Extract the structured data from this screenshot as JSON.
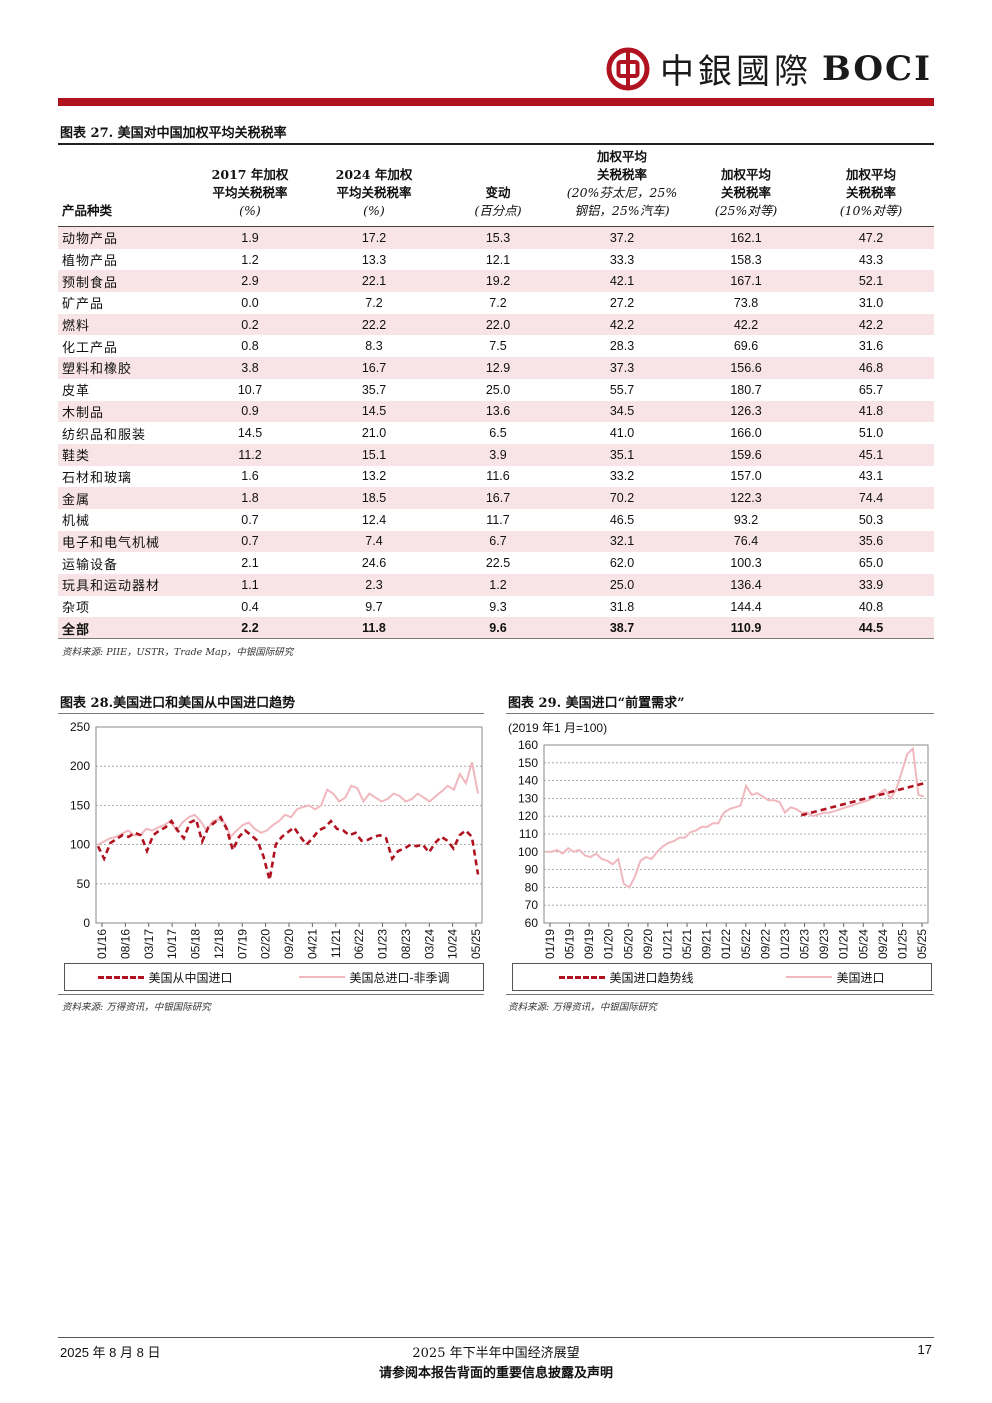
{
  "header": {
    "logo_cn": "中銀國際",
    "logo_en": "BOCI",
    "brand_color": "#b1121f"
  },
  "table27": {
    "title": "图表 27. 美国对中国加权平均关税税率",
    "col0": "产品种类",
    "col1_l1": "2017 年加权",
    "col1_l2": "平均关税税率",
    "col1_unit": "(%)",
    "col2_l1": "2024 年加权",
    "col2_l2": "平均关税税率",
    "col2_unit": "(%)",
    "col3_l1": "变动",
    "col3_unit": "(百分点)",
    "col4_l1": "加权平均",
    "col4_l2": "关税税率",
    "col4_l3": "(20%芬太尼，25%",
    "col4_l4": "钢铝，25%汽车)",
    "col5_l1": "加权平均",
    "col5_l2": "关税税率",
    "col5_unit": "(25%对等)",
    "col6_l1": "加权平均",
    "col6_l2": "关税税率",
    "col6_unit": "(10%对等)",
    "rows": [
      [
        "动物产品",
        "1.9",
        "17.2",
        "15.3",
        "37.2",
        "162.1",
        "47.2"
      ],
      [
        "植物产品",
        "1.2",
        "13.3",
        "12.1",
        "33.3",
        "158.3",
        "43.3"
      ],
      [
        "预制食品",
        "2.9",
        "22.1",
        "19.2",
        "42.1",
        "167.1",
        "52.1"
      ],
      [
        "矿产品",
        "0.0",
        "7.2",
        "7.2",
        "27.2",
        "73.8",
        "31.0"
      ],
      [
        "燃料",
        "0.2",
        "22.2",
        "22.0",
        "42.2",
        "42.2",
        "42.2"
      ],
      [
        "化工产品",
        "0.8",
        "8.3",
        "7.5",
        "28.3",
        "69.6",
        "31.6"
      ],
      [
        "塑料和橡胶",
        "3.8",
        "16.7",
        "12.9",
        "37.3",
        "156.6",
        "46.8"
      ],
      [
        "皮革",
        "10.7",
        "35.7",
        "25.0",
        "55.7",
        "180.7",
        "65.7"
      ],
      [
        "木制品",
        "0.9",
        "14.5",
        "13.6",
        "34.5",
        "126.3",
        "41.8"
      ],
      [
        "纺织品和服装",
        "14.5",
        "21.0",
        "6.5",
        "41.0",
        "166.0",
        "51.0"
      ],
      [
        "鞋类",
        "11.2",
        "15.1",
        "3.9",
        "35.1",
        "159.6",
        "45.1"
      ],
      [
        "石材和玻璃",
        "1.6",
        "13.2",
        "11.6",
        "33.2",
        "157.0",
        "43.1"
      ],
      [
        "金属",
        "1.8",
        "18.5",
        "16.7",
        "70.2",
        "122.3",
        "74.4"
      ],
      [
        "机械",
        "0.7",
        "12.4",
        "11.7",
        "46.5",
        "93.2",
        "50.3"
      ],
      [
        "电子和电气机械",
        "0.7",
        "7.4",
        "6.7",
        "32.1",
        "76.4",
        "35.6"
      ],
      [
        "运输设备",
        "2.1",
        "24.6",
        "22.5",
        "62.0",
        "100.3",
        "65.0"
      ],
      [
        "玩具和运动器材",
        "1.1",
        "2.3",
        "1.2",
        "25.0",
        "136.4",
        "33.9"
      ],
      [
        "杂项",
        "0.4",
        "9.7",
        "9.3",
        "31.8",
        "144.4",
        "40.8"
      ]
    ],
    "total": [
      "全部",
      "2.2",
      "11.8",
      "9.6",
      "38.7",
      "110.9",
      "44.5"
    ],
    "source": "资料来源: PIIE，USTR，Trade Map，中银国际研究"
  },
  "chart28": {
    "title": "图表 28.美国进口和美国从中国进口趋势",
    "source": "资料来源: 万得资讯，中银国际研究",
    "legend_china": "美国从中国进口",
    "legend_total": "美国总进口-非季调"
  },
  "chart29": {
    "title": "图表 29. 美国进口“前置需求”",
    "subtitle": "(2019 年1 月=100)",
    "source": "资料来源: 万得资讯，中银国际研究",
    "legend_trend": "美国进口趋势线",
    "legend_imports": "美国进口"
  },
  "chart_data": [
    {
      "type": "line",
      "title": "图表 28.美国进口和美国从中国进口趋势",
      "ylim": [
        0,
        250
      ],
      "yticks": [
        0,
        50,
        100,
        150,
        200,
        250
      ],
      "xticks": [
        "01/16",
        "08/16",
        "03/17",
        "10/17",
        "05/18",
        "12/18",
        "07/19",
        "02/20",
        "09/20",
        "04/21",
        "11/21",
        "06/22",
        "01/23",
        "08/23",
        "03/24",
        "10/24",
        "05/25"
      ],
      "series": [
        {
          "name": "美国从中国进口",
          "color": "#b1121f",
          "style": "dashed",
          "values": [
            98,
            82,
            102,
            107,
            112,
            110,
            115,
            112,
            92,
            112,
            118,
            122,
            130,
            118,
            108,
            128,
            132,
            104,
            122,
            128,
            135,
            120,
            93,
            110,
            118,
            112,
            105,
            85,
            55,
            100,
            110,
            116,
            122,
            110,
            100,
            108,
            118,
            122,
            130,
            120,
            118,
            112,
            115,
            105,
            106,
            110,
            112,
            108,
            82,
            92,
            95,
            100,
            98,
            100,
            90,
            102,
            110,
            105,
            95,
            112,
            118,
            110,
            62
          ]
        },
        {
          "name": "美国总进口-非季调",
          "color": "#f0b8be",
          "style": "solid",
          "values": [
            100,
            104,
            108,
            110,
            114,
            118,
            112,
            112,
            120,
            118,
            122,
            125,
            130,
            118,
            128,
            135,
            138,
            130,
            118,
            130,
            132,
            128,
            110,
            118,
            125,
            128,
            120,
            115,
            118,
            125,
            130,
            138,
            135,
            145,
            148,
            150,
            145,
            150,
            170,
            165,
            155,
            160,
            175,
            172,
            155,
            165,
            160,
            155,
            158,
            165,
            162,
            155,
            158,
            165,
            160,
            155,
            162,
            168,
            175,
            170,
            190,
            178,
            205,
            165
          ]
        }
      ]
    },
    {
      "type": "line",
      "title": "图表 29. 美国进口“前置需求”",
      "ylim": [
        60,
        160
      ],
      "yticks": [
        60,
        70,
        80,
        90,
        100,
        110,
        120,
        130,
        140,
        150,
        160
      ],
      "xticks": [
        "01/19",
        "05/19",
        "09/19",
        "01/20",
        "05/20",
        "09/20",
        "01/21",
        "05/21",
        "09/21",
        "01/22",
        "05/22",
        "09/22",
        "01/23",
        "05/23",
        "09/23",
        "01/24",
        "05/24",
        "09/24",
        "01/25",
        "05/25"
      ],
      "series": [
        {
          "name": "美国进口趋势线",
          "color": "#b1121f",
          "style": "dashed",
          "values": [
            120.5,
            122,
            123.5,
            125,
            126.5,
            128,
            129.5,
            131,
            132.5,
            134,
            135.5,
            137,
            138.5
          ]
        },
        {
          "name": "美国进口",
          "color": "#f0b8be",
          "style": "solid",
          "values": [
            100,
            100,
            101,
            99,
            102,
            100,
            101,
            98,
            97,
            99,
            96,
            95,
            93,
            96,
            82,
            80,
            86,
            95,
            97,
            96,
            100,
            103,
            105,
            106,
            108,
            108,
            111,
            112,
            114,
            114,
            116,
            116,
            122,
            124,
            125,
            126,
            137,
            132,
            133,
            131,
            129,
            129,
            128,
            122,
            125,
            124,
            122,
            122,
            120,
            121,
            122,
            122,
            123,
            124,
            125,
            126,
            127,
            128,
            129,
            131,
            133,
            135,
            130,
            135,
            145,
            155,
            158,
            132,
            131
          ]
        }
      ]
    }
  ],
  "footer": {
    "date": "2025 年 8 月 8 日",
    "report": "2025 年下半年中国经济展望",
    "page": "17",
    "disclaimer": "请参阅本报告背面的重要信息披露及声明"
  }
}
